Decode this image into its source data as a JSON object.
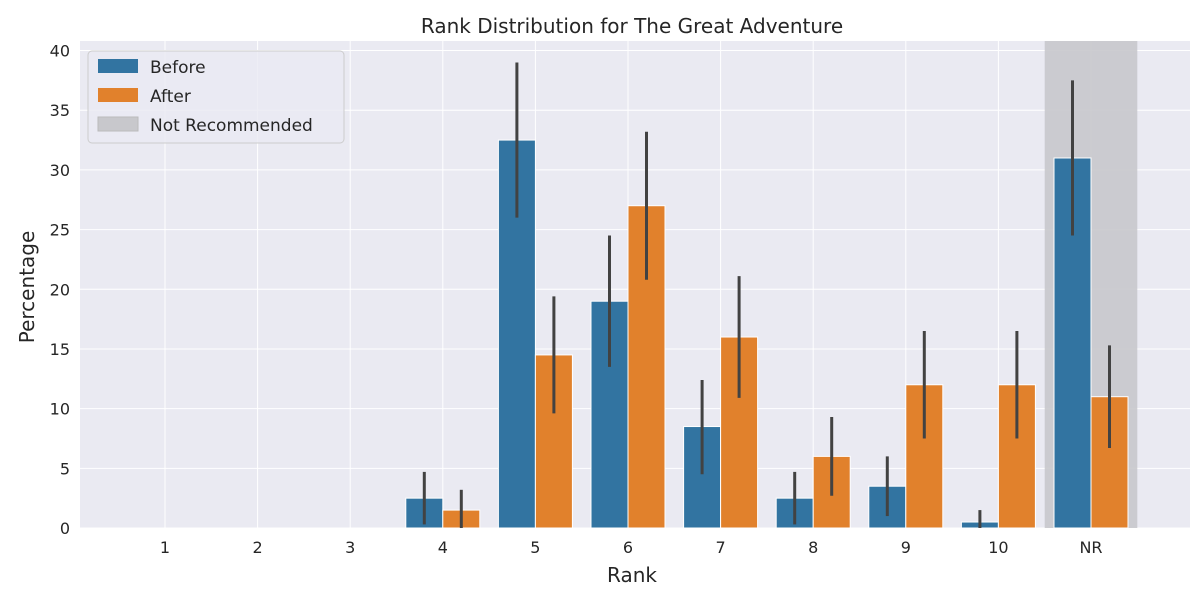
{
  "chart_data": {
    "type": "bar",
    "title": "Rank Distribution for The Great Adventure",
    "xlabel": "Rank",
    "ylabel": "Percentage",
    "categories": [
      "1",
      "2",
      "3",
      "4",
      "5",
      "6",
      "7",
      "8",
      "9",
      "10",
      "NR"
    ],
    "ylim": [
      0,
      40
    ],
    "yticks": [
      0,
      5,
      10,
      15,
      20,
      25,
      30,
      35,
      40
    ],
    "grid": true,
    "legend_position": "top-left",
    "series": [
      {
        "name": "Before",
        "color": "#3274a1",
        "values": [
          0,
          0,
          0,
          2.5,
          32.5,
          19,
          8.5,
          2.5,
          3.5,
          0.5,
          31
        ],
        "error_low": [
          0,
          0,
          0,
          0.3,
          26,
          13.5,
          4.5,
          0.3,
          1,
          0,
          24.5
        ],
        "error_high": [
          0,
          0,
          0,
          4.7,
          39,
          24.5,
          12.4,
          4.7,
          6,
          1.5,
          37.5
        ]
      },
      {
        "name": "After",
        "color": "#e1812c",
        "values": [
          0,
          0,
          0,
          1.5,
          14.5,
          27,
          16,
          6,
          12,
          12,
          11
        ],
        "error_low": [
          0,
          0,
          0,
          0,
          9.6,
          20.8,
          10.9,
          2.7,
          7.5,
          7.5,
          6.7
        ],
        "error_high": [
          0,
          0,
          0,
          3.2,
          19.4,
          33.2,
          21.1,
          9.3,
          16.5,
          16.5,
          15.3
        ]
      }
    ],
    "highlight": {
      "name": "Not Recommended",
      "category": "NR",
      "color": "#c8c8cc"
    }
  }
}
